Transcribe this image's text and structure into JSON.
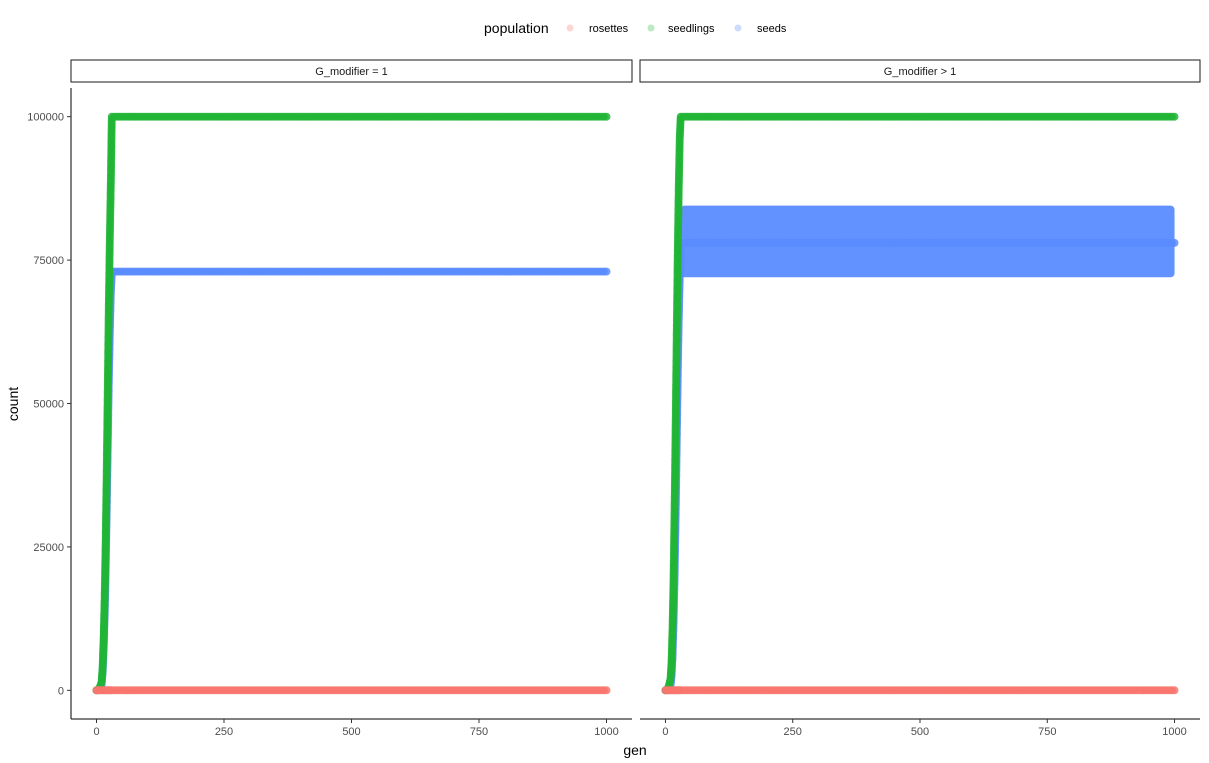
{
  "legend": {
    "title": "population",
    "entries": [
      {
        "label": "rosettes",
        "color": "#F8766D"
      },
      {
        "label": "seedlings",
        "color": "#21B536"
      },
      {
        "label": "seeds",
        "color": "#5A8CFF"
      }
    ]
  },
  "axes": {
    "xlabel": "gen",
    "ylabel": "count",
    "xlim": [
      -50,
      1050
    ],
    "ylim": [
      -5000,
      105000
    ],
    "x_ticks": [
      0,
      250,
      500,
      750,
      1000
    ],
    "y_ticks": [
      0,
      25000,
      50000,
      75000,
      100000
    ]
  },
  "chart_data": [
    {
      "type": "scatter",
      "facet": "G_modifier = 1",
      "series": [
        {
          "name": "rosettes",
          "color": "#F8766D",
          "x": [
            0,
            5,
            10,
            15,
            20,
            25,
            30,
            100,
            250,
            500,
            750,
            1000
          ],
          "y": [
            0,
            0,
            0,
            0,
            0,
            0,
            0,
            0,
            0,
            0,
            0,
            0
          ]
        },
        {
          "name": "seedlings",
          "color": "#21B536",
          "x": [
            0,
            5,
            10,
            12,
            14,
            16,
            18,
            20,
            22,
            24,
            26,
            28,
            30,
            100,
            250,
            500,
            750,
            1000
          ],
          "y": [
            0,
            200,
            1500,
            4000,
            9000,
            16000,
            26000,
            38000,
            52000,
            66000,
            78000,
            88000,
            100000,
            100000,
            100000,
            100000,
            100000,
            100000
          ]
        },
        {
          "name": "seeds",
          "color": "#5A8CFF",
          "x": [
            0,
            5,
            10,
            12,
            14,
            16,
            18,
            20,
            22,
            24,
            26,
            28,
            30,
            100,
            250,
            500,
            750,
            1000
          ],
          "y": [
            0,
            100,
            1000,
            3000,
            7000,
            13000,
            21000,
            31000,
            42000,
            53000,
            62000,
            69000,
            73000,
            73000,
            73000,
            73000,
            73000,
            73000
          ]
        }
      ]
    },
    {
      "type": "scatter",
      "facet": "G_modifier > 1",
      "series": [
        {
          "name": "rosettes",
          "color": "#F8766D",
          "x": [
            0,
            5,
            10,
            15,
            20,
            25,
            30,
            100,
            250,
            500,
            750,
            1000
          ],
          "y": [
            0,
            0,
            0,
            0,
            0,
            0,
            0,
            0,
            0,
            0,
            0,
            0
          ]
        },
        {
          "name": "seedlings",
          "color": "#21B536",
          "x": [
            0,
            5,
            10,
            12,
            14,
            16,
            18,
            20,
            22,
            24,
            26,
            28,
            30,
            100,
            250,
            500,
            750,
            1000
          ],
          "y": [
            0,
            300,
            2000,
            5000,
            11000,
            20000,
            32000,
            46000,
            61000,
            75000,
            87000,
            96000,
            100000,
            100000,
            100000,
            100000,
            100000,
            100000
          ]
        },
        {
          "name": "seeds",
          "color": "#5A8CFF",
          "x": [
            0,
            5,
            10,
            12,
            14,
            16,
            18,
            20,
            22,
            24,
            26,
            28,
            30,
            100,
            250,
            500,
            750,
            1000
          ],
          "y": [
            0,
            100,
            800,
            2500,
            6000,
            12000,
            20000,
            30000,
            42000,
            54000,
            64000,
            72000,
            78000,
            78000,
            78000,
            78000,
            78000,
            78000
          ],
          "band": {
            "x_range": [
              30,
              1000
            ],
            "y_range": [
              72000,
              84500
            ]
          }
        }
      ]
    }
  ]
}
